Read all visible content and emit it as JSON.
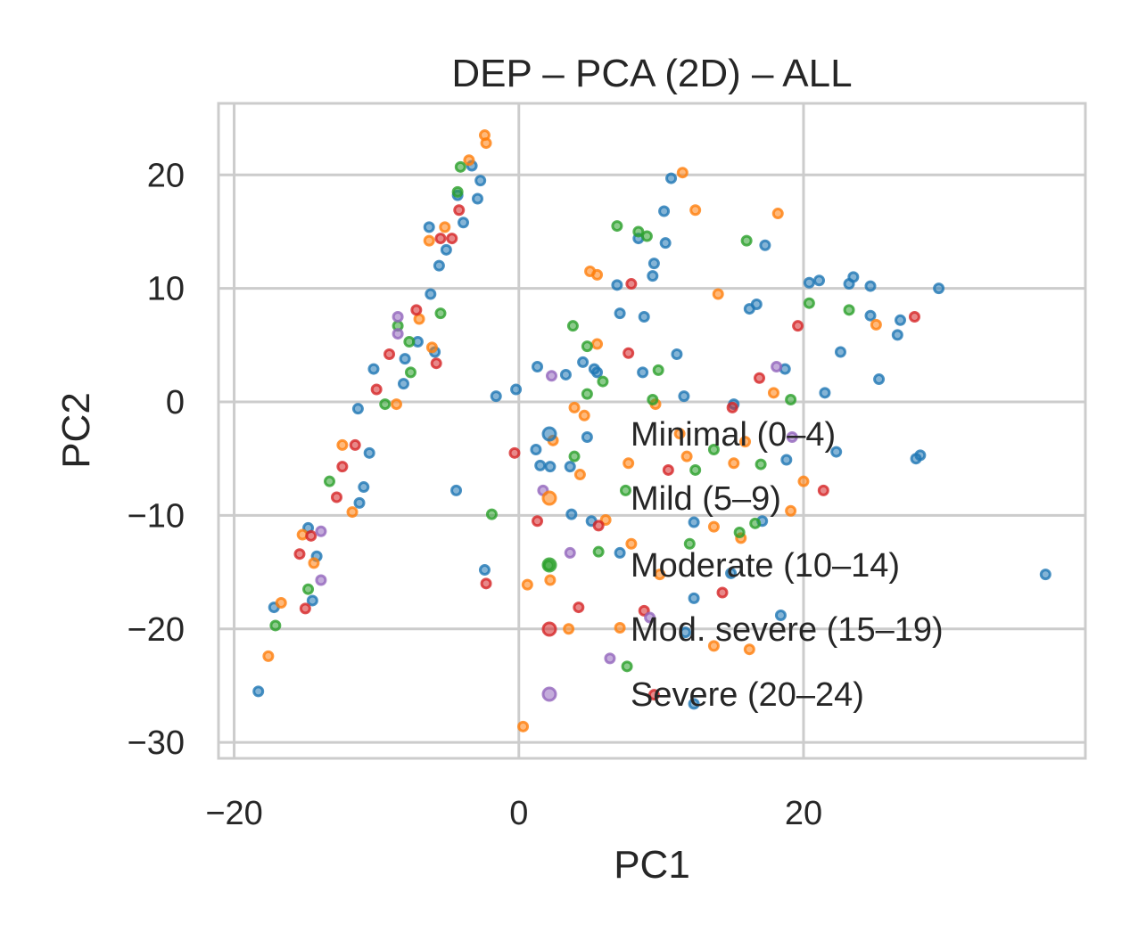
{
  "chart_data": {
    "type": "scatter",
    "title": "DEP – PCA (2D) – ALL",
    "xlabel": "PC1",
    "ylabel": "PC2",
    "xlim": [
      -21.1,
      39.8
    ],
    "ylim": [
      -31.4,
      26.3
    ],
    "xticks": [
      -20,
      0,
      20
    ],
    "yticks": [
      -30,
      -20,
      -10,
      0,
      10,
      20
    ],
    "xtick_labels": [
      "−20",
      "0",
      "20"
    ],
    "ytick_labels": [
      "−30",
      "−20",
      "−10",
      "0",
      "10",
      "20"
    ],
    "grid": true,
    "legend_placement": "lower-right",
    "series": [
      {
        "name": "Minimal (0–4)",
        "color": "#1f77b4",
        "points": [
          [
            -18.3,
            -25.5
          ],
          [
            -17.2,
            -18.1
          ],
          [
            -14.5,
            -17.5
          ],
          [
            -14.2,
            -13.6
          ],
          [
            -14.8,
            -11.1
          ],
          [
            -11.2,
            -8.9
          ],
          [
            -10.9,
            -7.5
          ],
          [
            -10.5,
            -4.5
          ],
          [
            -11.3,
            -0.6
          ],
          [
            -10.2,
            2.9
          ],
          [
            -8.1,
            1.6
          ],
          [
            -8.0,
            3.8
          ],
          [
            -7.1,
            5.3
          ],
          [
            -6.2,
            9.5
          ],
          [
            -5.6,
            12.0
          ],
          [
            -5.1,
            13.4
          ],
          [
            -6.3,
            15.4
          ],
          [
            -3.9,
            15.8
          ],
          [
            -2.9,
            17.9
          ],
          [
            -2.7,
            19.5
          ],
          [
            -3.3,
            20.8
          ],
          [
            -4.3,
            18.2
          ],
          [
            -5.9,
            4.4
          ],
          [
            -4.4,
            -7.8
          ],
          [
            -2.4,
            -14.8
          ],
          [
            -1.6,
            0.5
          ],
          [
            -0.2,
            1.1
          ],
          [
            1.3,
            3.1
          ],
          [
            1.2,
            -4.2
          ],
          [
            1.5,
            -5.6
          ],
          [
            2.2,
            -5.7
          ],
          [
            3.3,
            2.4
          ],
          [
            3.6,
            -5.7
          ],
          [
            3.7,
            -9.9
          ],
          [
            4.5,
            3.5
          ],
          [
            4.8,
            -3.1
          ],
          [
            5.1,
            -10.5
          ],
          [
            5.3,
            2.9
          ],
          [
            5.5,
            2.6
          ],
          [
            6.9,
            10.3
          ],
          [
            7.1,
            7.8
          ],
          [
            7.1,
            -13.3
          ],
          [
            8.4,
            14.4
          ],
          [
            8.7,
            2.6
          ],
          [
            8.8,
            7.5
          ],
          [
            9.4,
            11.1
          ],
          [
            9.5,
            12.2
          ],
          [
            10.2,
            16.8
          ],
          [
            10.3,
            14.0
          ],
          [
            10.7,
            19.7
          ],
          [
            11.1,
            4.2
          ],
          [
            11.6,
            0.5
          ],
          [
            12.3,
            -10.6
          ],
          [
            12.3,
            -17.3
          ],
          [
            11.7,
            -20.3
          ],
          [
            12.3,
            -26.6
          ],
          [
            14.9,
            -15.1
          ],
          [
            15.1,
            -0.2
          ],
          [
            16.2,
            8.2
          ],
          [
            16.7,
            8.6
          ],
          [
            17.3,
            13.8
          ],
          [
            17.1,
            -10.5
          ],
          [
            18.4,
            -18.8
          ],
          [
            18.7,
            2.9
          ],
          [
            18.8,
            -5.1
          ],
          [
            20.4,
            10.5
          ],
          [
            21.1,
            10.7
          ],
          [
            21.5,
            0.8
          ],
          [
            22.3,
            -4.4
          ],
          [
            22.6,
            4.4
          ],
          [
            23.2,
            10.4
          ],
          [
            23.5,
            11.0
          ],
          [
            24.7,
            10.2
          ],
          [
            24.7,
            7.6
          ],
          [
            25.3,
            2.0
          ],
          [
            26.6,
            5.9
          ],
          [
            26.8,
            7.2
          ],
          [
            27.9,
            -5.0
          ],
          [
            28.2,
            -4.7
          ],
          [
            29.5,
            10.0
          ],
          [
            37.0,
            -15.2
          ]
        ]
      },
      {
        "name": "Mild (5–9)",
        "color": "#ff7f0e",
        "points": [
          [
            -17.6,
            -22.4
          ],
          [
            -16.7,
            -17.7
          ],
          [
            -15.2,
            -11.7
          ],
          [
            -14.4,
            -14.2
          ],
          [
            -12.4,
            -3.8
          ],
          [
            -11.7,
            -9.7
          ],
          [
            -8.6,
            -0.2
          ],
          [
            -6.1,
            4.8
          ],
          [
            -6.3,
            14.2
          ],
          [
            -5.2,
            15.4
          ],
          [
            -3.5,
            21.3
          ],
          [
            -2.4,
            23.5
          ],
          [
            -2.3,
            22.8
          ],
          [
            -7.0,
            7.3
          ],
          [
            0.3,
            -28.6
          ],
          [
            0.6,
            -16.1
          ],
          [
            2.2,
            -15.7
          ],
          [
            2.4,
            -3.4
          ],
          [
            3.5,
            -20.0
          ],
          [
            3.9,
            -0.5
          ],
          [
            4.3,
            -6.4
          ],
          [
            4.6,
            -1.2
          ],
          [
            5.0,
            11.5
          ],
          [
            5.5,
            11.2
          ],
          [
            5.5,
            5.1
          ],
          [
            6.1,
            -10.4
          ],
          [
            7.1,
            -19.9
          ],
          [
            7.7,
            -5.4
          ],
          [
            7.9,
            -12.5
          ],
          [
            9.6,
            -0.2
          ],
          [
            9.9,
            -15.2
          ],
          [
            11.3,
            -2.8
          ],
          [
            11.5,
            20.2
          ],
          [
            12.4,
            16.9
          ],
          [
            13.7,
            -11.0
          ],
          [
            14.0,
            9.5
          ],
          [
            13.7,
            -21.5
          ],
          [
            15.1,
            -5.4
          ],
          [
            15.6,
            -12.0
          ],
          [
            16.2,
            -21.8
          ],
          [
            17.9,
            0.8
          ],
          [
            18.2,
            16.6
          ],
          [
            19.1,
            -9.6
          ],
          [
            20.0,
            -7.0
          ],
          [
            25.1,
            6.8
          ],
          [
            15.9,
            -3.5
          ],
          [
            11.8,
            -4.8
          ]
        ]
      },
      {
        "name": "Moderate (10–14)",
        "color": "#2ca02c",
        "points": [
          [
            -17.1,
            -19.7
          ],
          [
            -14.8,
            -16.5
          ],
          [
            -13.3,
            -7.0
          ],
          [
            -9.4,
            -0.2
          ],
          [
            -8.5,
            6.7
          ],
          [
            -7.7,
            5.3
          ],
          [
            -5.5,
            7.8
          ],
          [
            -7.6,
            2.6
          ],
          [
            -4.3,
            18.5
          ],
          [
            -4.1,
            20.7
          ],
          [
            -1.9,
            -9.9
          ],
          [
            2.1,
            -14.4
          ],
          [
            3.8,
            6.7
          ],
          [
            3.9,
            -4.8
          ],
          [
            4.8,
            4.9
          ],
          [
            4.8,
            0.7
          ],
          [
            5.6,
            -13.2
          ],
          [
            5.9,
            1.8
          ],
          [
            6.9,
            15.5
          ],
          [
            7.5,
            -7.8
          ],
          [
            8.4,
            15.0
          ],
          [
            9.0,
            14.6
          ],
          [
            9.4,
            0.2
          ],
          [
            9.8,
            2.8
          ],
          [
            12.0,
            -12.5
          ],
          [
            12.4,
            -6.0
          ],
          [
            13.7,
            -4.2
          ],
          [
            15.5,
            -11.5
          ],
          [
            16.0,
            14.2
          ],
          [
            16.6,
            -10.7
          ],
          [
            17.0,
            -5.5
          ],
          [
            19.1,
            0.2
          ],
          [
            20.4,
            8.7
          ],
          [
            23.2,
            8.1
          ],
          [
            7.6,
            -23.3
          ]
        ]
      },
      {
        "name": "Mod. severe (15–19)",
        "color": "#d62728",
        "points": [
          [
            -15.4,
            -13.4
          ],
          [
            -15.0,
            -18.2
          ],
          [
            -14.6,
            -11.8
          ],
          [
            -12.8,
            -8.4
          ],
          [
            -12.4,
            -5.7
          ],
          [
            -11.5,
            -3.8
          ],
          [
            -10.0,
            1.1
          ],
          [
            -9.1,
            4.2
          ],
          [
            -7.2,
            8.1
          ],
          [
            -5.8,
            3.4
          ],
          [
            -4.7,
            14.4
          ],
          [
            -4.2,
            16.9
          ],
          [
            -5.5,
            14.4
          ],
          [
            -2.3,
            -16.0
          ],
          [
            -0.3,
            -4.5
          ],
          [
            1.3,
            -10.5
          ],
          [
            4.2,
            -18.1
          ],
          [
            5.6,
            -10.9
          ],
          [
            7.7,
            4.3
          ],
          [
            7.9,
            10.4
          ],
          [
            8.8,
            -18.4
          ],
          [
            10.5,
            -6.0
          ],
          [
            14.3,
            -16.8
          ],
          [
            15.0,
            -0.5
          ],
          [
            16.9,
            2.1
          ],
          [
            19.6,
            6.7
          ],
          [
            21.4,
            -7.8
          ],
          [
            27.8,
            7.5
          ],
          [
            9.5,
            -25.8
          ]
        ]
      },
      {
        "name": "Severe (20–24)",
        "color": "#9467bd",
        "points": [
          [
            -13.9,
            -15.7
          ],
          [
            -8.5,
            7.5
          ],
          [
            -8.5,
            6.0
          ],
          [
            1.7,
            -7.8
          ],
          [
            2.3,
            2.3
          ],
          [
            3.6,
            -13.3
          ],
          [
            6.4,
            -22.6
          ],
          [
            -13.9,
            -11.4
          ],
          [
            18.1,
            3.1
          ],
          [
            19.2,
            -3.1
          ],
          [
            9.2,
            -19.0
          ]
        ]
      }
    ]
  }
}
